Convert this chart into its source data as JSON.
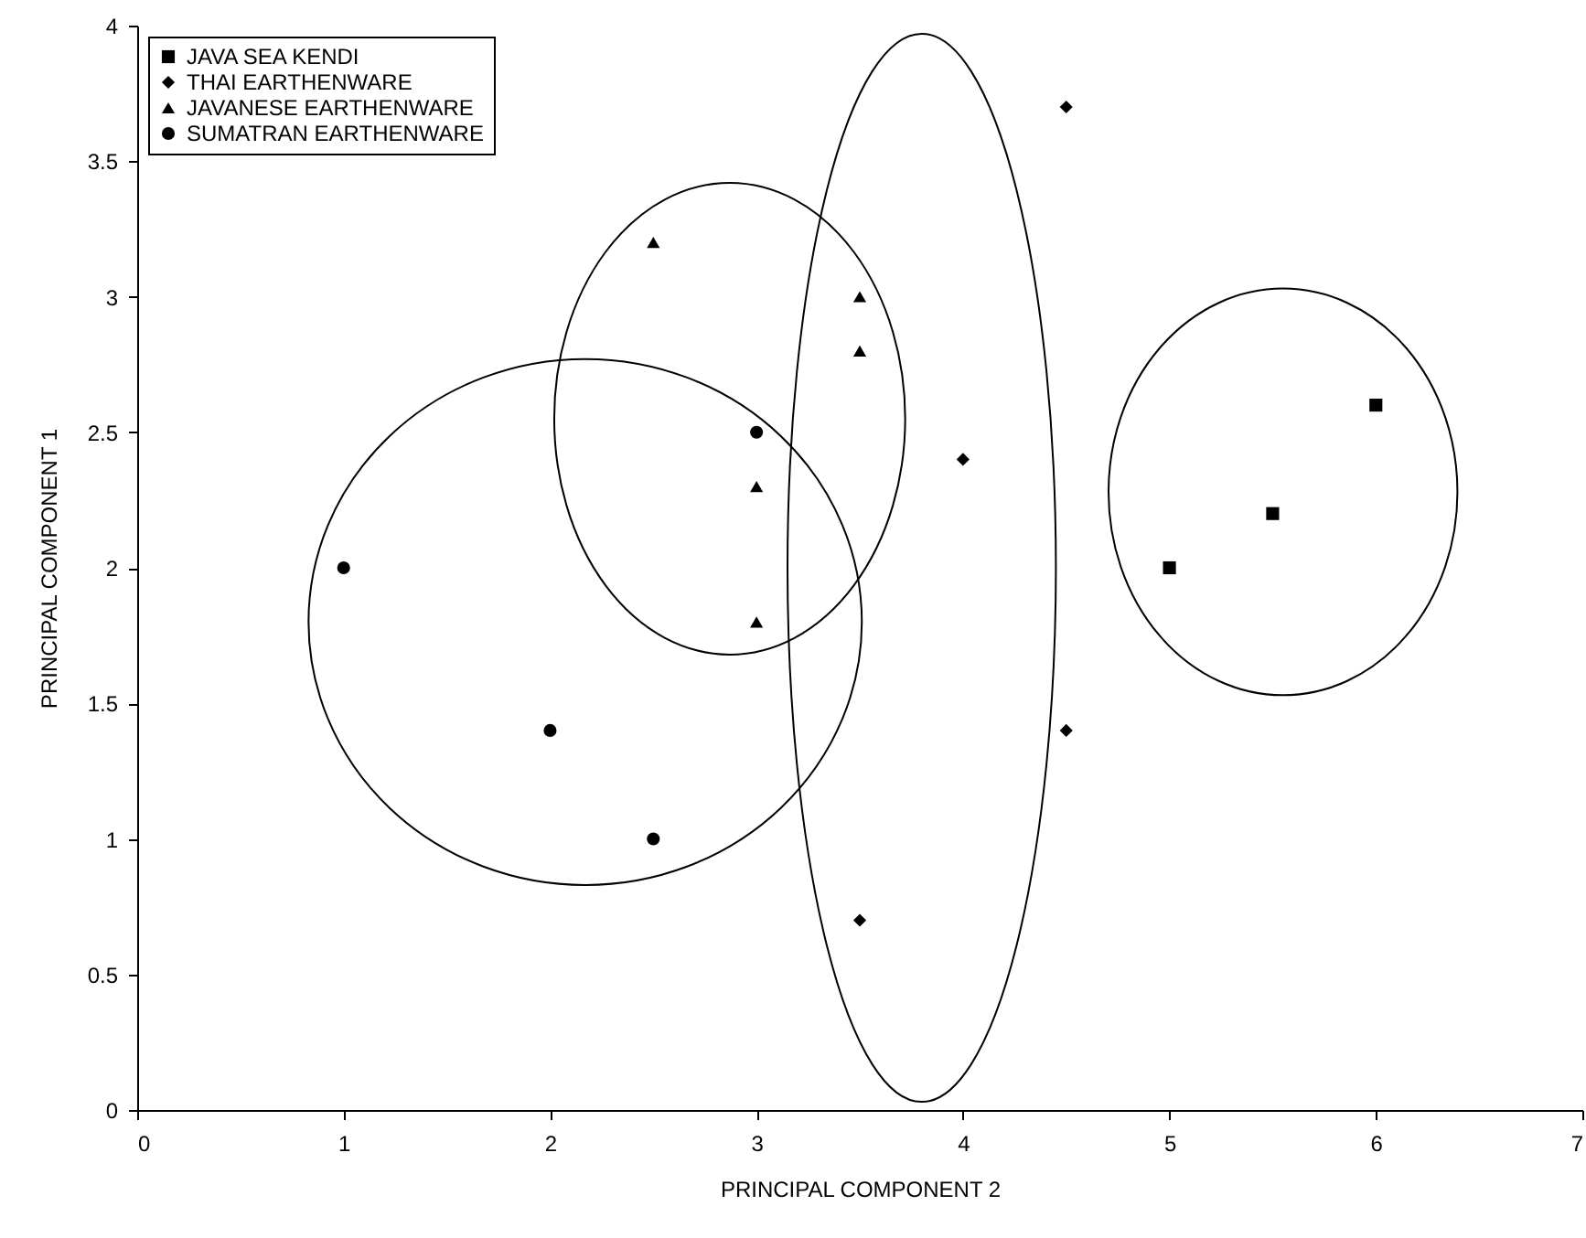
{
  "chart_data": {
    "type": "scatter",
    "xlabel": "PRINCIPAL COMPONENT 2",
    "ylabel": "PRINCIPAL COMPONENT 1",
    "xlim": [
      0,
      7
    ],
    "xticks": [
      0,
      1,
      2,
      3,
      4,
      5,
      6,
      7
    ],
    "ylim": [
      0,
      4
    ],
    "yticks": [
      0,
      0.5,
      1,
      1.5,
      2,
      2.5,
      3,
      3.5,
      4
    ],
    "grid": false,
    "legend": "top left",
    "series": [
      {
        "name": "JAVA SEA KENDI",
        "color": "#000000",
        "marker": "square",
        "x": [
          5,
          5.5,
          6
        ],
        "values": [
          2,
          2.2,
          2.6
        ]
      },
      {
        "name": "THAI EARTHENWARE",
        "color": "#000000",
        "marker": "diamond",
        "x": [
          4.5,
          4,
          4.5,
          3.5
        ],
        "values": [
          3.7,
          2.4,
          1.4,
          0.7
        ]
      },
      {
        "name": "JAVANESE EARTHENWARE",
        "color": "#000000",
        "marker": "triangle",
        "x": [
          2.5,
          3.5,
          3.5,
          3,
          3
        ],
        "values": [
          3.2,
          3,
          2.8,
          2.3,
          1.8
        ]
      },
      {
        "name": "SUMATRAN EARTHENWARE",
        "color": "#000000",
        "marker": "circle",
        "x": [
          3,
          1,
          2,
          2.5
        ],
        "values": [
          2.5,
          2,
          1.4,
          1
        ]
      }
    ]
  }
}
